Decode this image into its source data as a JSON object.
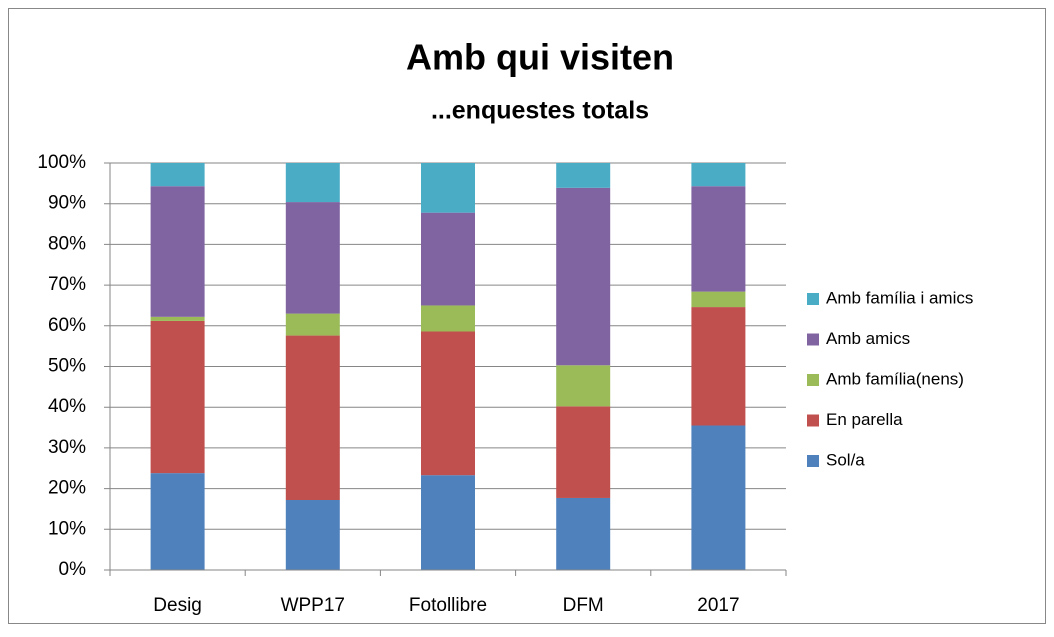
{
  "chart_data": {
    "type": "stacked_bar",
    "title": "Amb qui visiten",
    "subtitle": "...enquestes totals",
    "categories": [
      "Desig",
      "WPP17",
      "Fotollibre",
      "DFM",
      "2017"
    ],
    "series": [
      {
        "name": "Sol/a",
        "color": "#4f81bd",
        "values": [
          23.8,
          17.2,
          23.3,
          17.7,
          35.5
        ]
      },
      {
        "name": "En parella",
        "color": "#c0504d",
        "values": [
          37.4,
          40.4,
          35.3,
          22.5,
          29.1
        ]
      },
      {
        "name": "Amb família(nens)",
        "color": "#9bbb59",
        "values": [
          1.0,
          5.4,
          6.4,
          10.1,
          3.8
        ]
      },
      {
        "name": "Amb amics",
        "color": "#8064a2",
        "values": [
          32.1,
          27.4,
          22.8,
          43.6,
          25.9
        ]
      },
      {
        "name": "Amb família i amics",
        "color": "#4bacc6",
        "values": [
          5.7,
          9.6,
          12.2,
          6.1,
          5.7
        ]
      }
    ],
    "ylim": [
      0,
      100
    ],
    "yticks": [
      {
        "value": 0,
        "label": "0%"
      },
      {
        "value": 10,
        "label": "10%"
      },
      {
        "value": 20,
        "label": "20%"
      },
      {
        "value": 30,
        "label": "30%"
      },
      {
        "value": 40,
        "label": "40%"
      },
      {
        "value": 50,
        "label": "50%"
      },
      {
        "value": 60,
        "label": "60%"
      },
      {
        "value": 70,
        "label": "70%"
      },
      {
        "value": 80,
        "label": "80%"
      },
      {
        "value": 90,
        "label": "90%"
      },
      {
        "value": 100,
        "label": "100%"
      }
    ],
    "grid": true,
    "legend": "right"
  }
}
